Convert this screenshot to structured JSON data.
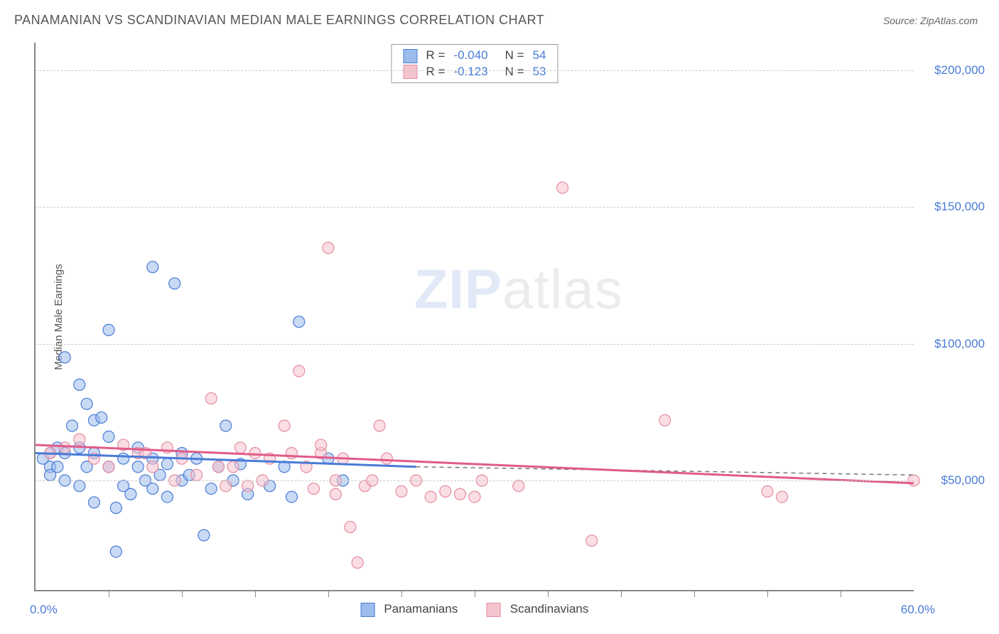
{
  "header": {
    "title": "PANAMANIAN VS SCANDINAVIAN MEDIAN MALE EARNINGS CORRELATION CHART",
    "source_label": "Source: ZipAtlas.com"
  },
  "watermark": {
    "zip": "ZIP",
    "atlas": "atlas"
  },
  "chart": {
    "type": "scatter",
    "yaxis_label": "Median Male Earnings",
    "xlim": [
      0,
      60
    ],
    "ylim": [
      10000,
      210000
    ],
    "background_color": "#ffffff",
    "grid_color": "#cccccc",
    "axis_color": "#888888",
    "tick_label_color": "#4a7bd6",
    "yticks": [
      {
        "value": 50000,
        "label": "$50,000"
      },
      {
        "value": 100000,
        "label": "$100,000"
      },
      {
        "value": 150000,
        "label": "$150,000"
      },
      {
        "value": 200000,
        "label": "$200,000"
      }
    ],
    "xticks_minor": [
      5,
      10,
      15,
      20,
      25,
      30,
      35,
      40,
      45,
      50,
      55
    ],
    "x_edge_left": "0.0%",
    "x_edge_right": "60.0%",
    "marker_radius": 8,
    "marker_opacity": 0.55,
    "series": [
      {
        "name": "Panamanians",
        "fill": "#9cbced",
        "stroke": "#4a7bd6",
        "r_value": "-0.040",
        "n_value": "54",
        "trend": {
          "x1": 0,
          "y1": 60000,
          "x2": 26,
          "y2": 55000,
          "color": "#4a7bd6",
          "width": 3,
          "dash_x1": 26,
          "dash_y1": 55000,
          "dash_x2": 60,
          "dash_y2": 52000
        },
        "points": [
          [
            0.5,
            58000
          ],
          [
            1,
            55000
          ],
          [
            1,
            60000
          ],
          [
            1,
            52000
          ],
          [
            1.5,
            62000
          ],
          [
            1.5,
            55000
          ],
          [
            2,
            60000
          ],
          [
            2,
            50000
          ],
          [
            2,
            95000
          ],
          [
            2.5,
            70000
          ],
          [
            3,
            85000
          ],
          [
            3,
            62000
          ],
          [
            3,
            48000
          ],
          [
            3.5,
            78000
          ],
          [
            3.5,
            55000
          ],
          [
            4,
            72000
          ],
          [
            4,
            60000
          ],
          [
            4,
            42000
          ],
          [
            4.5,
            73000
          ],
          [
            5,
            55000
          ],
          [
            5,
            66000
          ],
          [
            5,
            105000
          ],
          [
            5.5,
            40000
          ],
          [
            5.5,
            24000
          ],
          [
            6,
            48000
          ],
          [
            6,
            58000
          ],
          [
            6.5,
            45000
          ],
          [
            7,
            55000
          ],
          [
            7,
            62000
          ],
          [
            7.5,
            50000
          ],
          [
            8,
            58000
          ],
          [
            8,
            47000
          ],
          [
            8,
            128000
          ],
          [
            8.5,
            52000
          ],
          [
            9,
            56000
          ],
          [
            9,
            44000
          ],
          [
            9.5,
            122000
          ],
          [
            10,
            60000
          ],
          [
            10,
            50000
          ],
          [
            10.5,
            52000
          ],
          [
            11,
            58000
          ],
          [
            11.5,
            30000
          ],
          [
            12,
            47000
          ],
          [
            12.5,
            55000
          ],
          [
            13,
            70000
          ],
          [
            13.5,
            50000
          ],
          [
            14,
            56000
          ],
          [
            14.5,
            45000
          ],
          [
            16,
            48000
          ],
          [
            17,
            55000
          ],
          [
            17.5,
            44000
          ],
          [
            18,
            108000
          ],
          [
            20,
            58000
          ],
          [
            21,
            50000
          ]
        ]
      },
      {
        "name": "Scandinavians",
        "fill": "#f5c3cd",
        "stroke": "#e38ca0",
        "r_value": "-0.123",
        "n_value": "53",
        "trend": {
          "x1": 0,
          "y1": 63000,
          "x2": 60,
          "y2": 49000,
          "color": "#e15b8a",
          "width": 3
        },
        "points": [
          [
            1,
            60000
          ],
          [
            2,
            62000
          ],
          [
            3,
            65000
          ],
          [
            4,
            58000
          ],
          [
            5,
            55000
          ],
          [
            6,
            63000
          ],
          [
            7,
            60000
          ],
          [
            7.5,
            60000
          ],
          [
            8,
            55000
          ],
          [
            9,
            62000
          ],
          [
            9.5,
            50000
          ],
          [
            10,
            58000
          ],
          [
            11,
            52000
          ],
          [
            12,
            80000
          ],
          [
            12.5,
            55000
          ],
          [
            13,
            48000
          ],
          [
            13.5,
            55000
          ],
          [
            14,
            62000
          ],
          [
            14.5,
            48000
          ],
          [
            15,
            60000
          ],
          [
            15.5,
            50000
          ],
          [
            16,
            58000
          ],
          [
            17,
            70000
          ],
          [
            17.5,
            60000
          ],
          [
            18,
            90000
          ],
          [
            18.5,
            55000
          ],
          [
            19,
            47000
          ],
          [
            19.5,
            60000
          ],
          [
            19.5,
            63000
          ],
          [
            20,
            135000
          ],
          [
            20.5,
            50000
          ],
          [
            20.5,
            45000
          ],
          [
            21,
            58000
          ],
          [
            21.5,
            33000
          ],
          [
            22,
            20000
          ],
          [
            22.5,
            48000
          ],
          [
            23,
            50000
          ],
          [
            23.5,
            70000
          ],
          [
            24,
            58000
          ],
          [
            25,
            46000
          ],
          [
            26,
            50000
          ],
          [
            27,
            44000
          ],
          [
            28,
            46000
          ],
          [
            29,
            45000
          ],
          [
            30,
            44000
          ],
          [
            30.5,
            50000
          ],
          [
            33,
            48000
          ],
          [
            36,
            157000
          ],
          [
            38,
            28000
          ],
          [
            43,
            72000
          ],
          [
            50,
            46000
          ],
          [
            51,
            44000
          ],
          [
            60,
            50000
          ]
        ]
      }
    ],
    "legend_top": {
      "r_label": "R =",
      "n_label": "N =",
      "label_color": "#444444",
      "value_color": "#4a7bd6"
    },
    "legend_bottom": {
      "series1_label": "Panamanians",
      "series2_label": "Scandinavians"
    }
  }
}
